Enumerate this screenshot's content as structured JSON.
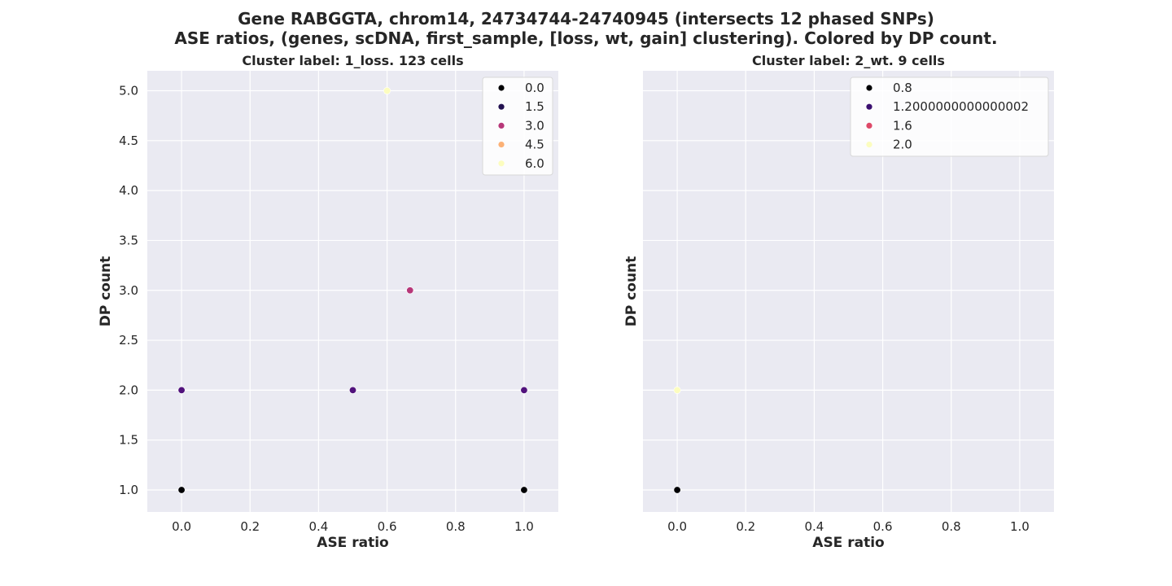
{
  "title_line1": "Gene RABGGTA, chrom14, 24734744-24740945 (intersects 12 phased SNPs)",
  "title_line2": "ASE ratios, (genes, scDNA, first_sample, [loss, wt, gain] clustering). Colored by DP count.",
  "chart_data": [
    {
      "type": "scatter",
      "title": "Cluster label: 1_loss. 123 cells",
      "xlabel": "ASE ratio",
      "ylabel": "DP count",
      "xlim": [
        -0.1,
        1.1
      ],
      "ylim": [
        0.78,
        5.2
      ],
      "xticks": [
        "0.0",
        "0.2",
        "0.4",
        "0.6",
        "0.8",
        "1.0"
      ],
      "yticks": [
        "1.0",
        "1.5",
        "2.0",
        "2.5",
        "3.0",
        "3.5",
        "4.0",
        "4.5",
        "5.0"
      ],
      "grid": true,
      "legend_position": "top-right",
      "legend": [
        {
          "label": "0.0",
          "color": "#000004"
        },
        {
          "label": "1.5",
          "color": "#221150"
        },
        {
          "label": "3.0",
          "color": "#b73779"
        },
        {
          "label": "4.5",
          "color": "#fcb176"
        },
        {
          "label": "6.0",
          "color": "#fcfdbf"
        }
      ],
      "points": [
        {
          "x": 0.0,
          "y": 1,
          "color": "#000004"
        },
        {
          "x": 1.0,
          "y": 1,
          "color": "#000004"
        },
        {
          "x": 0.0,
          "y": 2,
          "color": "#51127c"
        },
        {
          "x": 0.5,
          "y": 2,
          "color": "#51127c"
        },
        {
          "x": 1.0,
          "y": 2,
          "color": "#51127c"
        },
        {
          "x": 0.667,
          "y": 3,
          "color": "#b73779"
        },
        {
          "x": 0.6,
          "y": 5,
          "color": "#fcfdbf"
        }
      ]
    },
    {
      "type": "scatter",
      "title": "Cluster label: 2_wt. 9 cells",
      "xlabel": "ASE ratio",
      "ylabel": "DP count",
      "xlim": [
        -0.1,
        1.1
      ],
      "ylim": [
        0.78,
        5.2
      ],
      "xticks": [
        "0.0",
        "0.2",
        "0.4",
        "0.6",
        "0.8",
        "1.0"
      ],
      "yticks": [],
      "grid": true,
      "legend_position": "top-right",
      "legend": [
        {
          "label": "0.8",
          "color": "#000004"
        },
        {
          "label": "1.2000000000000002",
          "color": "#3b0f70"
        },
        {
          "label": "1.6",
          "color": "#de4968"
        },
        {
          "label": "2.0",
          "color": "#fcfdbf"
        }
      ],
      "points": [
        {
          "x": 0.0,
          "y": 1,
          "color": "#000004"
        },
        {
          "x": 0.0,
          "y": 2,
          "color": "#fcfdbf"
        }
      ]
    }
  ]
}
